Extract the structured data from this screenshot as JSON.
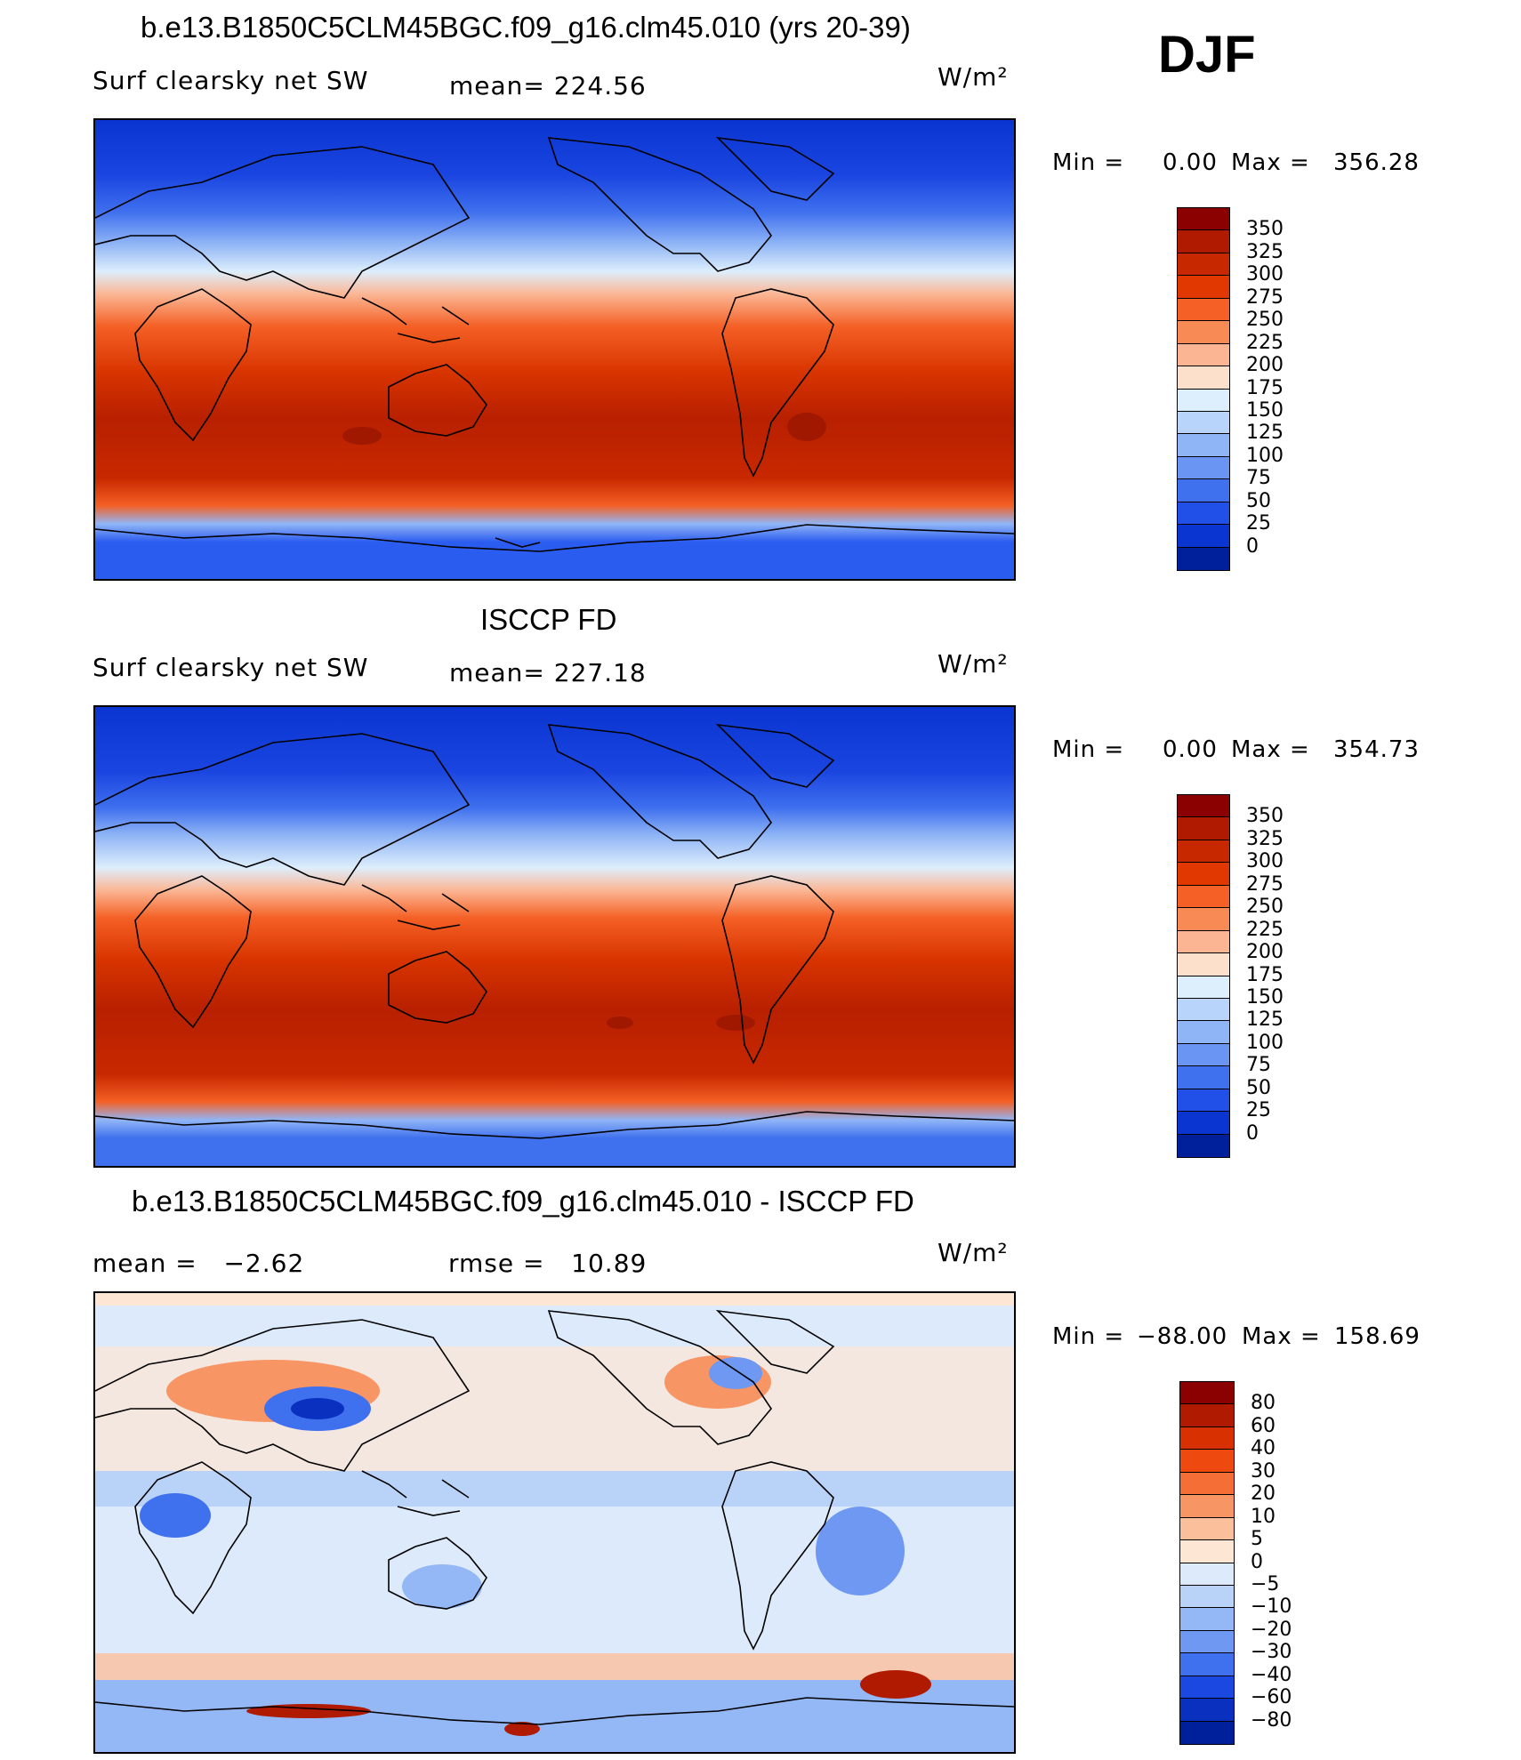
{
  "header": {
    "season": "DJF"
  },
  "panels": [
    {
      "title": "b.e13.B1850C5CLM45BGC.f09_g16.clm45.010 (yrs 20-39)",
      "left_text": "Surf clearsky net SW",
      "center_text": "mean= 224.56",
      "units": "W/m²",
      "minmax": {
        "min_label": "Min =",
        "min_value": "0.00",
        "max_label": "Max =",
        "max_value": "356.28"
      },
      "colorbar": {
        "labels": [
          "350",
          "325",
          "300",
          "275",
          "250",
          "225",
          "200",
          "175",
          "150",
          "125",
          "100",
          "75",
          "50",
          "25",
          "0"
        ],
        "colors": [
          "#8b0000",
          "#b01a00",
          "#c82800",
          "#e03800",
          "#f46025",
          "#f88a55",
          "#fbb593",
          "#fde0cc",
          "#ddeefc",
          "#b8d4fa",
          "#90b5f6",
          "#6a95f2",
          "#3f70ee",
          "#2050e8",
          "#0a35d0",
          "#001f9a"
        ]
      }
    },
    {
      "title": "ISCCP FD",
      "left_text": "Surf clearsky net SW",
      "center_text": "mean= 227.18",
      "units": "W/m²",
      "minmax": {
        "min_label": "Min =",
        "min_value": "0.00",
        "max_label": "Max =",
        "max_value": "354.73"
      },
      "colorbar": {
        "labels": [
          "350",
          "325",
          "300",
          "275",
          "250",
          "225",
          "200",
          "175",
          "150",
          "125",
          "100",
          "75",
          "50",
          "25",
          "0"
        ],
        "colors": [
          "#8b0000",
          "#b01a00",
          "#c82800",
          "#e03800",
          "#f46025",
          "#f88a55",
          "#fbb593",
          "#fde0cc",
          "#ddeefc",
          "#b8d4fa",
          "#90b5f6",
          "#6a95f2",
          "#3f70ee",
          "#2050e8",
          "#0a35d0",
          "#001f9a"
        ]
      }
    },
    {
      "title": "b.e13.B1850C5CLM45BGC.f09_g16.clm45.010 - ISCCP FD",
      "left_text": "mean =   −2.62",
      "center_text": "rmse =   10.89",
      "units": "W/m²",
      "minmax": {
        "min_label": "Min =",
        "min_value": "−88.00",
        "max_label": "Max =",
        "max_value": "158.69"
      },
      "colorbar": {
        "labels": [
          "80",
          "60",
          "40",
          "30",
          "20",
          "10",
          "5",
          "0",
          "−5",
          "−10",
          "−20",
          "−30",
          "−40",
          "−60",
          "−80"
        ],
        "colors": [
          "#8b0000",
          "#b01a00",
          "#d83000",
          "#ee4a10",
          "#f46e35",
          "#f89565",
          "#fbbf9c",
          "#fde6d4",
          "#dceafb",
          "#b9d3f8",
          "#94b7f5",
          "#6e98f1",
          "#3f70ee",
          "#1a48e0",
          "#0a30c0",
          "#001f9a"
        ]
      }
    }
  ],
  "colors": {
    "polar_deep": "#0a35d0",
    "polar_blue": "#2b5cf0",
    "mid_blue": "#90b5f6",
    "pale": "#fde0cc",
    "orange": "#f46025",
    "red": "#c82800",
    "dark_red": "#a81c00"
  }
}
